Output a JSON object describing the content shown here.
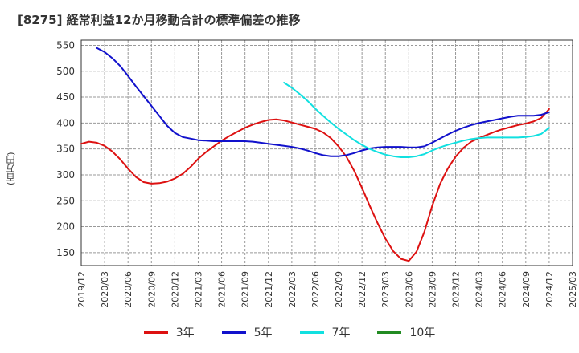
{
  "chart_data": {
    "type": "line",
    "title": "[8275]  経常利益12か月移動合計の標準偏差の推移",
    "ylabel": "(百万円)",
    "xlabel": "",
    "ylim": [
      125,
      560
    ],
    "yticks": [
      150,
      200,
      250,
      300,
      350,
      400,
      450,
      500,
      550
    ],
    "xticks": [
      "2019/12",
      "2020/03",
      "2020/06",
      "2020/09",
      "2020/12",
      "2021/03",
      "2021/06",
      "2021/09",
      "2021/12",
      "2022/03",
      "2022/06",
      "2022/09",
      "2022/12",
      "2023/03",
      "2023/06",
      "2023/09",
      "2023/12",
      "2024/03",
      "2024/06",
      "2024/09",
      "2024/12",
      "2025/03"
    ],
    "grid": true,
    "legend_position": "bottom",
    "series": [
      {
        "name": "3年",
        "color": "#dd1111",
        "points": [
          [
            "2019/12",
            360
          ],
          [
            "2020/01",
            364
          ],
          [
            "2020/02",
            362
          ],
          [
            "2020/03",
            356
          ],
          [
            "2020/04",
            345
          ],
          [
            "2020/05",
            330
          ],
          [
            "2020/06",
            312
          ],
          [
            "2020/07",
            296
          ],
          [
            "2020/08",
            286
          ],
          [
            "2020/09",
            283
          ],
          [
            "2020/10",
            284
          ],
          [
            "2020/11",
            287
          ],
          [
            "2020/12",
            293
          ],
          [
            "2021/01",
            302
          ],
          [
            "2021/02",
            315
          ],
          [
            "2021/03",
            331
          ],
          [
            "2021/04",
            344
          ],
          [
            "2021/05",
            355
          ],
          [
            "2021/06",
            366
          ],
          [
            "2021/07",
            375
          ],
          [
            "2021/08",
            383
          ],
          [
            "2021/09",
            391
          ],
          [
            "2021/10",
            397
          ],
          [
            "2021/11",
            402
          ],
          [
            "2021/12",
            406
          ],
          [
            "2022/01",
            407
          ],
          [
            "2022/02",
            405
          ],
          [
            "2022/03",
            401
          ],
          [
            "2022/04",
            397
          ],
          [
            "2022/05",
            393
          ],
          [
            "2022/06",
            389
          ],
          [
            "2022/07",
            382
          ],
          [
            "2022/08",
            371
          ],
          [
            "2022/09",
            355
          ],
          [
            "2022/10",
            335
          ],
          [
            "2022/11",
            308
          ],
          [
            "2022/12",
            275
          ],
          [
            "2023/01",
            240
          ],
          [
            "2023/02",
            207
          ],
          [
            "2023/03",
            177
          ],
          [
            "2023/04",
            153
          ],
          [
            "2023/05",
            138
          ],
          [
            "2023/06",
            134
          ],
          [
            "2023/07",
            152
          ],
          [
            "2023/08",
            190
          ],
          [
            "2023/09",
            240
          ],
          [
            "2023/10",
            282
          ],
          [
            "2023/11",
            312
          ],
          [
            "2023/12",
            335
          ],
          [
            "2024/01",
            352
          ],
          [
            "2024/02",
            364
          ],
          [
            "2024/03",
            371
          ],
          [
            "2024/04",
            377
          ],
          [
            "2024/05",
            383
          ],
          [
            "2024/06",
            388
          ],
          [
            "2024/07",
            392
          ],
          [
            "2024/08",
            396
          ],
          [
            "2024/09",
            399
          ],
          [
            "2024/10",
            403
          ],
          [
            "2024/11",
            410
          ],
          [
            "2024/12",
            427
          ]
        ]
      },
      {
        "name": "5年",
        "color": "#1111cc",
        "points": [
          [
            "2020/02",
            545
          ],
          [
            "2020/03",
            537
          ],
          [
            "2020/04",
            525
          ],
          [
            "2020/05",
            510
          ],
          [
            "2020/06",
            491
          ],
          [
            "2020/07",
            471
          ],
          [
            "2020/08",
            452
          ],
          [
            "2020/09",
            433
          ],
          [
            "2020/10",
            414
          ],
          [
            "2020/11",
            395
          ],
          [
            "2020/12",
            381
          ],
          [
            "2021/01",
            373
          ],
          [
            "2021/02",
            370
          ],
          [
            "2021/03",
            367
          ],
          [
            "2021/04",
            366
          ],
          [
            "2021/05",
            365
          ],
          [
            "2021/06",
            365
          ],
          [
            "2021/07",
            365
          ],
          [
            "2021/08",
            365
          ],
          [
            "2021/09",
            365
          ],
          [
            "2021/10",
            364
          ],
          [
            "2021/11",
            362
          ],
          [
            "2021/12",
            360
          ],
          [
            "2022/01",
            358
          ],
          [
            "2022/02",
            356
          ],
          [
            "2022/03",
            354
          ],
          [
            "2022/04",
            351
          ],
          [
            "2022/05",
            347
          ],
          [
            "2022/06",
            342
          ],
          [
            "2022/07",
            338
          ],
          [
            "2022/08",
            336
          ],
          [
            "2022/09",
            336
          ],
          [
            "2022/10",
            338
          ],
          [
            "2022/11",
            342
          ],
          [
            "2022/12",
            347
          ],
          [
            "2023/01",
            351
          ],
          [
            "2023/02",
            353
          ],
          [
            "2023/03",
            354
          ],
          [
            "2023/04",
            354
          ],
          [
            "2023/05",
            354
          ],
          [
            "2023/06",
            353
          ],
          [
            "2023/07",
            353
          ],
          [
            "2023/08",
            355
          ],
          [
            "2023/09",
            362
          ],
          [
            "2023/10",
            370
          ],
          [
            "2023/11",
            378
          ],
          [
            "2023/12",
            385
          ],
          [
            "2024/01",
            391
          ],
          [
            "2024/02",
            396
          ],
          [
            "2024/03",
            400
          ],
          [
            "2024/04",
            403
          ],
          [
            "2024/05",
            406
          ],
          [
            "2024/06",
            409
          ],
          [
            "2024/07",
            412
          ],
          [
            "2024/08",
            414
          ],
          [
            "2024/09",
            414
          ],
          [
            "2024/10",
            414
          ],
          [
            "2024/11",
            416
          ],
          [
            "2024/12",
            421
          ]
        ]
      },
      {
        "name": "7年",
        "color": "#11e0e0",
        "points": [
          [
            "2022/02",
            478
          ],
          [
            "2022/03",
            468
          ],
          [
            "2022/04",
            456
          ],
          [
            "2022/05",
            443
          ],
          [
            "2022/06",
            428
          ],
          [
            "2022/07",
            414
          ],
          [
            "2022/08",
            401
          ],
          [
            "2022/09",
            389
          ],
          [
            "2022/10",
            378
          ],
          [
            "2022/11",
            367
          ],
          [
            "2022/12",
            358
          ],
          [
            "2023/01",
            350
          ],
          [
            "2023/02",
            344
          ],
          [
            "2023/03",
            339
          ],
          [
            "2023/04",
            336
          ],
          [
            "2023/05",
            334
          ],
          [
            "2023/06",
            334
          ],
          [
            "2023/07",
            336
          ],
          [
            "2023/08",
            340
          ],
          [
            "2023/09",
            347
          ],
          [
            "2023/10",
            353
          ],
          [
            "2023/11",
            358
          ],
          [
            "2023/12",
            362
          ],
          [
            "2024/01",
            366
          ],
          [
            "2024/02",
            369
          ],
          [
            "2024/03",
            371
          ],
          [
            "2024/04",
            372
          ],
          [
            "2024/05",
            372
          ],
          [
            "2024/06",
            372
          ],
          [
            "2024/07",
            372
          ],
          [
            "2024/08",
            372
          ],
          [
            "2024/09",
            373
          ],
          [
            "2024/10",
            375
          ],
          [
            "2024/11",
            379
          ],
          [
            "2024/12",
            391
          ]
        ]
      },
      {
        "name": "10年",
        "color": "#228b22",
        "points": []
      }
    ]
  }
}
